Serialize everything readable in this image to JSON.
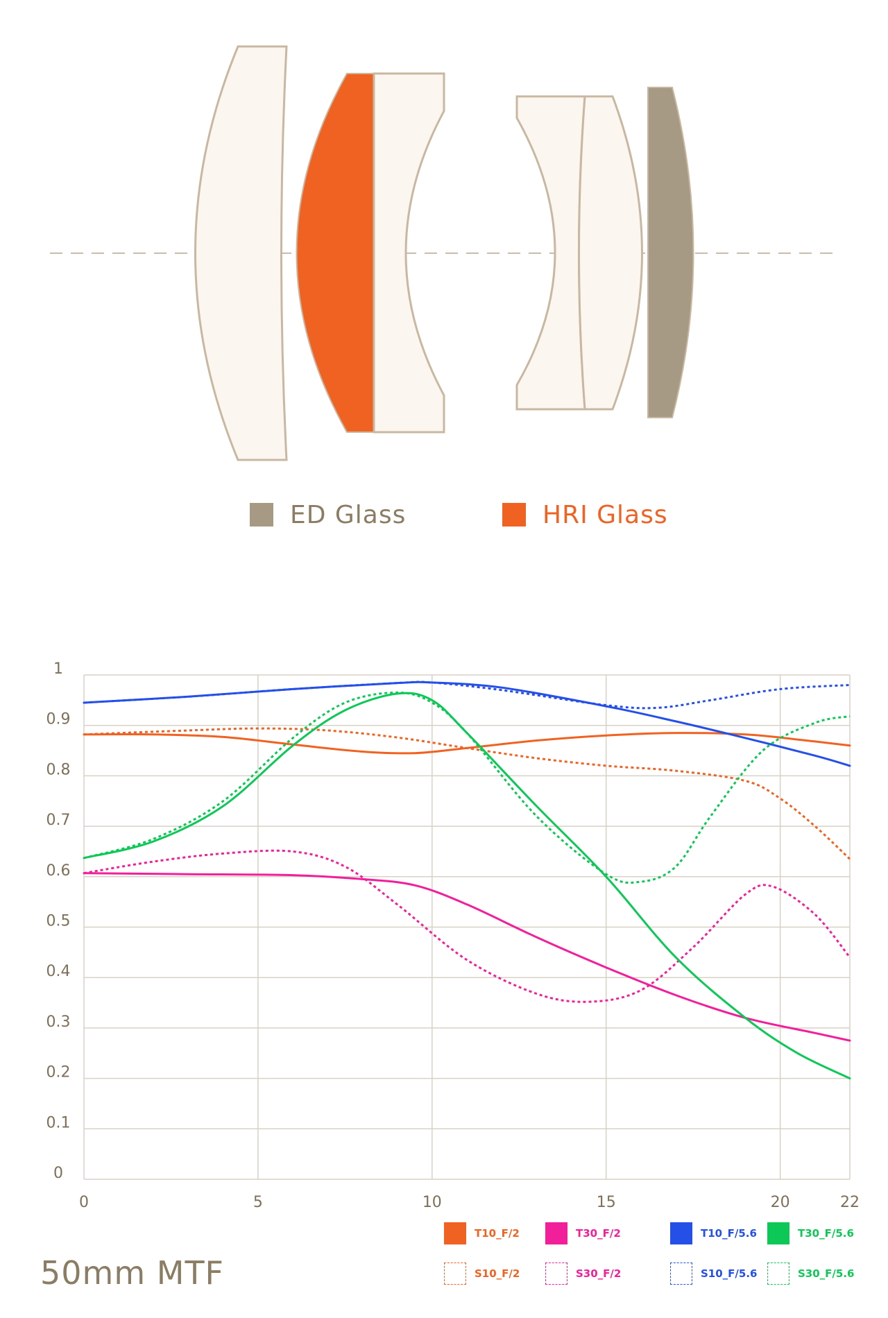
{
  "glass_legend": [
    {
      "label": "ED Glass",
      "color": "#a69a85"
    },
    {
      "label": "HRI Glass",
      "color": "#f06222"
    }
  ],
  "lens_colors": {
    "standard": "#fbf6ef",
    "outline": "#c9b8a1",
    "ed": "#a69a85",
    "hri": "#f06222",
    "axis": "#c9bcaa"
  },
  "chart_data": {
    "type": "line",
    "title": "50mm MTF",
    "xlabel": "",
    "ylabel": "",
    "xlim": [
      0,
      22
    ],
    "ylim": [
      0,
      1
    ],
    "x_ticks": [
      0,
      5,
      10,
      15,
      20,
      22
    ],
    "y_ticks": [
      0,
      0.1,
      0.2,
      0.3,
      0.4,
      0.5,
      0.6,
      0.7,
      0.8,
      0.9,
      1
    ],
    "y_tick_labels": [
      "0",
      "0.1",
      "0.2",
      "0.3",
      "0.4",
      "0.5",
      "0.6",
      "0.7",
      "0.8",
      "0.9",
      "1"
    ],
    "grid": true,
    "legend_position": "bottom-right",
    "series": [
      {
        "name": "T10_F/2",
        "color": "#f06222",
        "dashed": false,
        "x": [
          0,
          2,
          4,
          6,
          8,
          9.5,
          11,
          13,
          15,
          17,
          19,
          20.5,
          22
        ],
        "y": [
          0.882,
          0.882,
          0.877,
          0.862,
          0.848,
          0.845,
          0.855,
          0.87,
          0.88,
          0.885,
          0.882,
          0.872,
          0.86
        ]
      },
      {
        "name": "S10_F/2",
        "color": "#f06222",
        "dashed": true,
        "x": [
          0,
          3,
          5,
          7,
          9,
          11,
          13,
          15,
          17,
          19,
          20,
          21,
          22
        ],
        "y": [
          0.882,
          0.89,
          0.894,
          0.89,
          0.876,
          0.855,
          0.835,
          0.82,
          0.81,
          0.79,
          0.755,
          0.7,
          0.635
        ]
      },
      {
        "name": "T30_F/2",
        "color": "#f21f9a",
        "dashed": false,
        "x": [
          0,
          3,
          6,
          8,
          9.5,
          11,
          13,
          15,
          17,
          19,
          21,
          22
        ],
        "y": [
          0.607,
          0.605,
          0.603,
          0.595,
          0.583,
          0.545,
          0.48,
          0.42,
          0.365,
          0.32,
          0.29,
          0.275
        ]
      },
      {
        "name": "S30_F/2",
        "color": "#f21f9a",
        "dashed": true,
        "x": [
          0,
          2,
          4,
          6,
          7.5,
          9,
          11,
          13,
          14.5,
          16,
          17.5,
          19,
          19.8,
          21,
          22
        ],
        "y": [
          0.607,
          0.63,
          0.646,
          0.65,
          0.62,
          0.545,
          0.435,
          0.368,
          0.352,
          0.375,
          0.46,
          0.565,
          0.58,
          0.525,
          0.44
        ]
      },
      {
        "name": "T10_F/5.6",
        "color": "#2450e8",
        "dashed": false,
        "x": [
          0,
          3,
          6,
          9,
          10,
          12,
          15,
          17,
          19,
          21,
          22
        ],
        "y": [
          0.945,
          0.957,
          0.972,
          0.984,
          0.985,
          0.975,
          0.938,
          0.908,
          0.875,
          0.84,
          0.82
        ]
      },
      {
        "name": "S10_F/5.6",
        "color": "#2450e8",
        "dashed": true,
        "x": [
          0,
          3,
          6,
          9,
          10,
          12,
          15,
          16.5,
          18,
          20,
          22
        ],
        "y": [
          0.945,
          0.957,
          0.972,
          0.984,
          0.985,
          0.97,
          0.94,
          0.935,
          0.95,
          0.972,
          0.98
        ]
      },
      {
        "name": "T30_F/5.6",
        "color": "#0dc857",
        "dashed": false,
        "x": [
          0,
          2,
          4,
          6,
          7.5,
          9,
          10,
          11,
          13,
          15,
          17,
          19,
          20.5,
          22
        ],
        "y": [
          0.637,
          0.67,
          0.74,
          0.86,
          0.93,
          0.963,
          0.95,
          0.885,
          0.74,
          0.6,
          0.44,
          0.32,
          0.25,
          0.2
        ]
      },
      {
        "name": "S30_F/5.6",
        "color": "#0dc857",
        "dashed": true,
        "x": [
          0,
          2,
          4,
          6,
          7.5,
          9,
          10,
          11,
          13,
          15,
          16,
          17,
          18,
          19.5,
          21,
          22
        ],
        "y": [
          0.637,
          0.675,
          0.75,
          0.875,
          0.945,
          0.965,
          0.945,
          0.885,
          0.72,
          0.605,
          0.59,
          0.62,
          0.72,
          0.85,
          0.905,
          0.918
        ]
      }
    ]
  }
}
